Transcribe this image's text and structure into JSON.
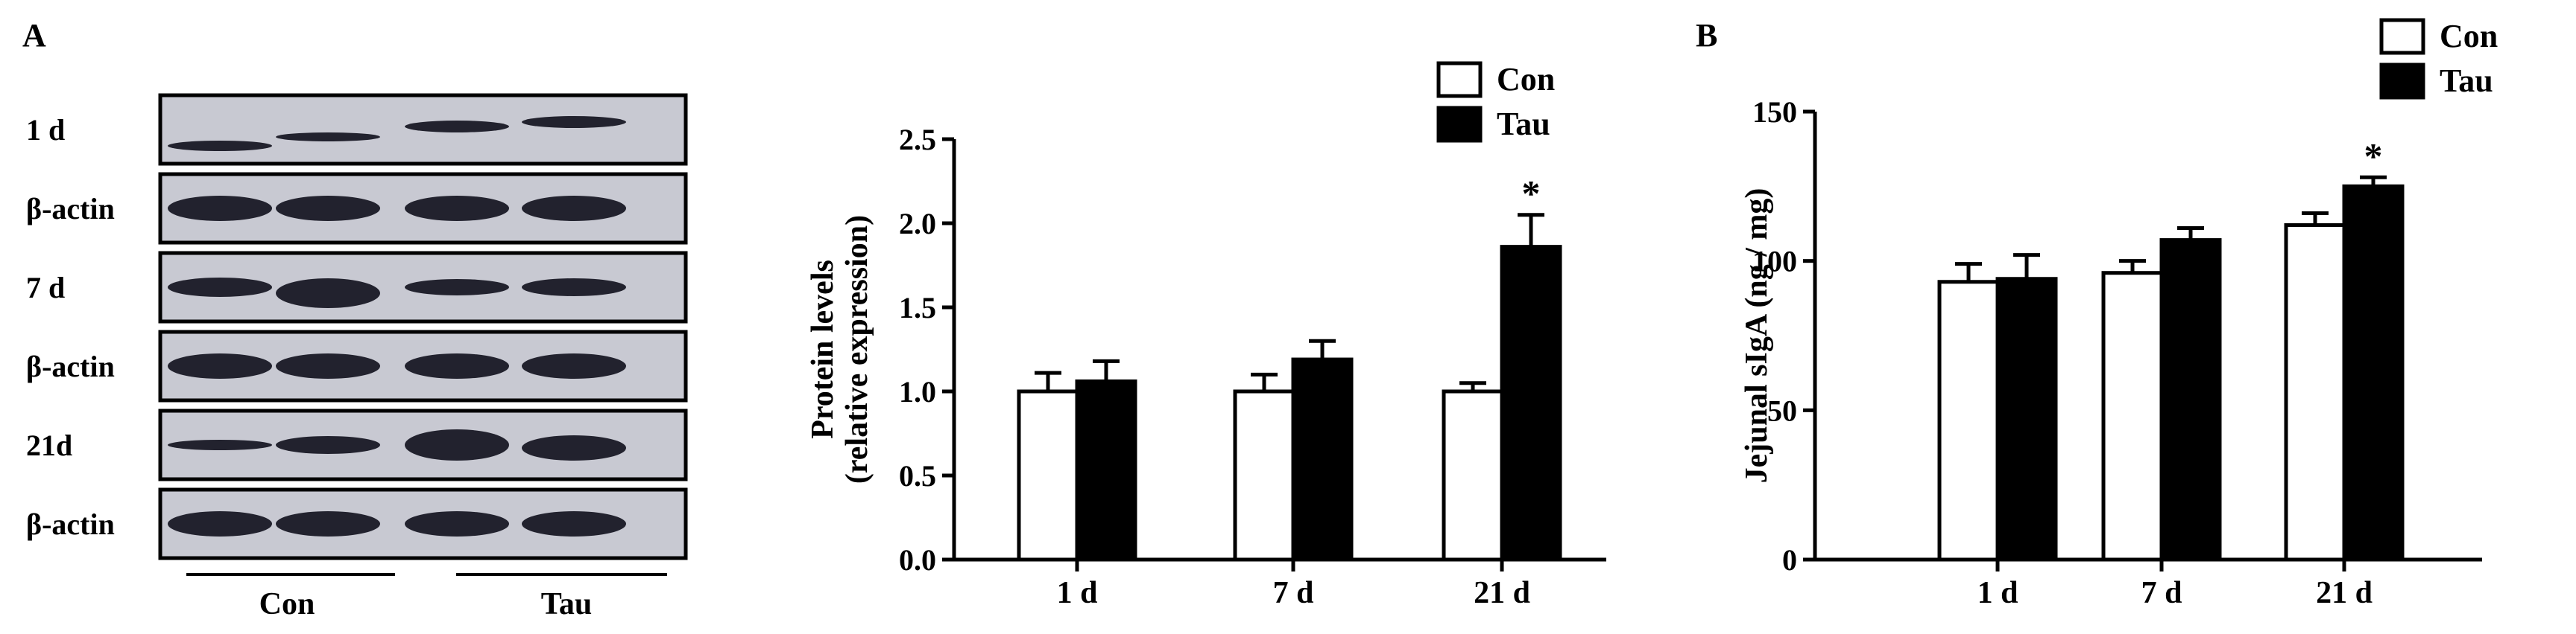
{
  "panel_labels": {
    "a": "A",
    "b": "B"
  },
  "blot": {
    "rows": [
      {
        "label": "1 d",
        "kind": "target"
      },
      {
        "label": "β-actin",
        "kind": "actin"
      },
      {
        "label": "7 d",
        "kind": "target"
      },
      {
        "label": "β-actin",
        "kind": "actin"
      },
      {
        "label": "21d",
        "kind": "target"
      },
      {
        "label": "β-actin",
        "kind": "actin"
      }
    ],
    "groups": [
      "Con",
      "Tau"
    ]
  },
  "colors": {
    "con": "#ffffff",
    "tau": "#000000",
    "axis": "#000000",
    "membrane": "#c8c9d2",
    "band": "#141420"
  },
  "chart_data": [
    {
      "type": "bar",
      "title": "",
      "xlabel": "",
      "ylabel": "Protein levels (relative expression)",
      "ylabel_lines": [
        "Protein levels",
        "(relative expression)"
      ],
      "categories": [
        "1 d",
        "7 d",
        "21 d"
      ],
      "ylim": [
        0,
        2.5
      ],
      "yticks": [
        "0.0",
        "0.5",
        "1.0",
        "1.5",
        "2.0",
        "2.5"
      ],
      "series": [
        {
          "name": "Con",
          "values": [
            1.0,
            1.0,
            1.0
          ],
          "errors": [
            0.11,
            0.1,
            0.05
          ]
        },
        {
          "name": "Tau",
          "values": [
            1.06,
            1.19,
            1.86
          ],
          "errors": [
            0.12,
            0.11,
            0.19
          ]
        }
      ],
      "annotations": [
        {
          "series": "Tau",
          "category": "21 d",
          "text": "*"
        }
      ],
      "legend": "top-right"
    },
    {
      "type": "bar",
      "title": "",
      "xlabel": "",
      "ylabel": "Jejunal sIgA (ng / mg)",
      "categories": [
        "1 d",
        "7 d",
        "21 d"
      ],
      "ylim": [
        0,
        150
      ],
      "yticks": [
        "0",
        "50",
        "100",
        "150"
      ],
      "series": [
        {
          "name": "Con",
          "values": [
            93,
            96,
            112
          ],
          "errors": [
            6,
            4,
            4
          ]
        },
        {
          "name": "Tau",
          "values": [
            94,
            107,
            125
          ],
          "errors": [
            8,
            4,
            3
          ]
        }
      ],
      "annotations": [
        {
          "series": "Tau",
          "category": "21 d",
          "text": "*"
        }
      ],
      "legend": "top-right"
    }
  ]
}
